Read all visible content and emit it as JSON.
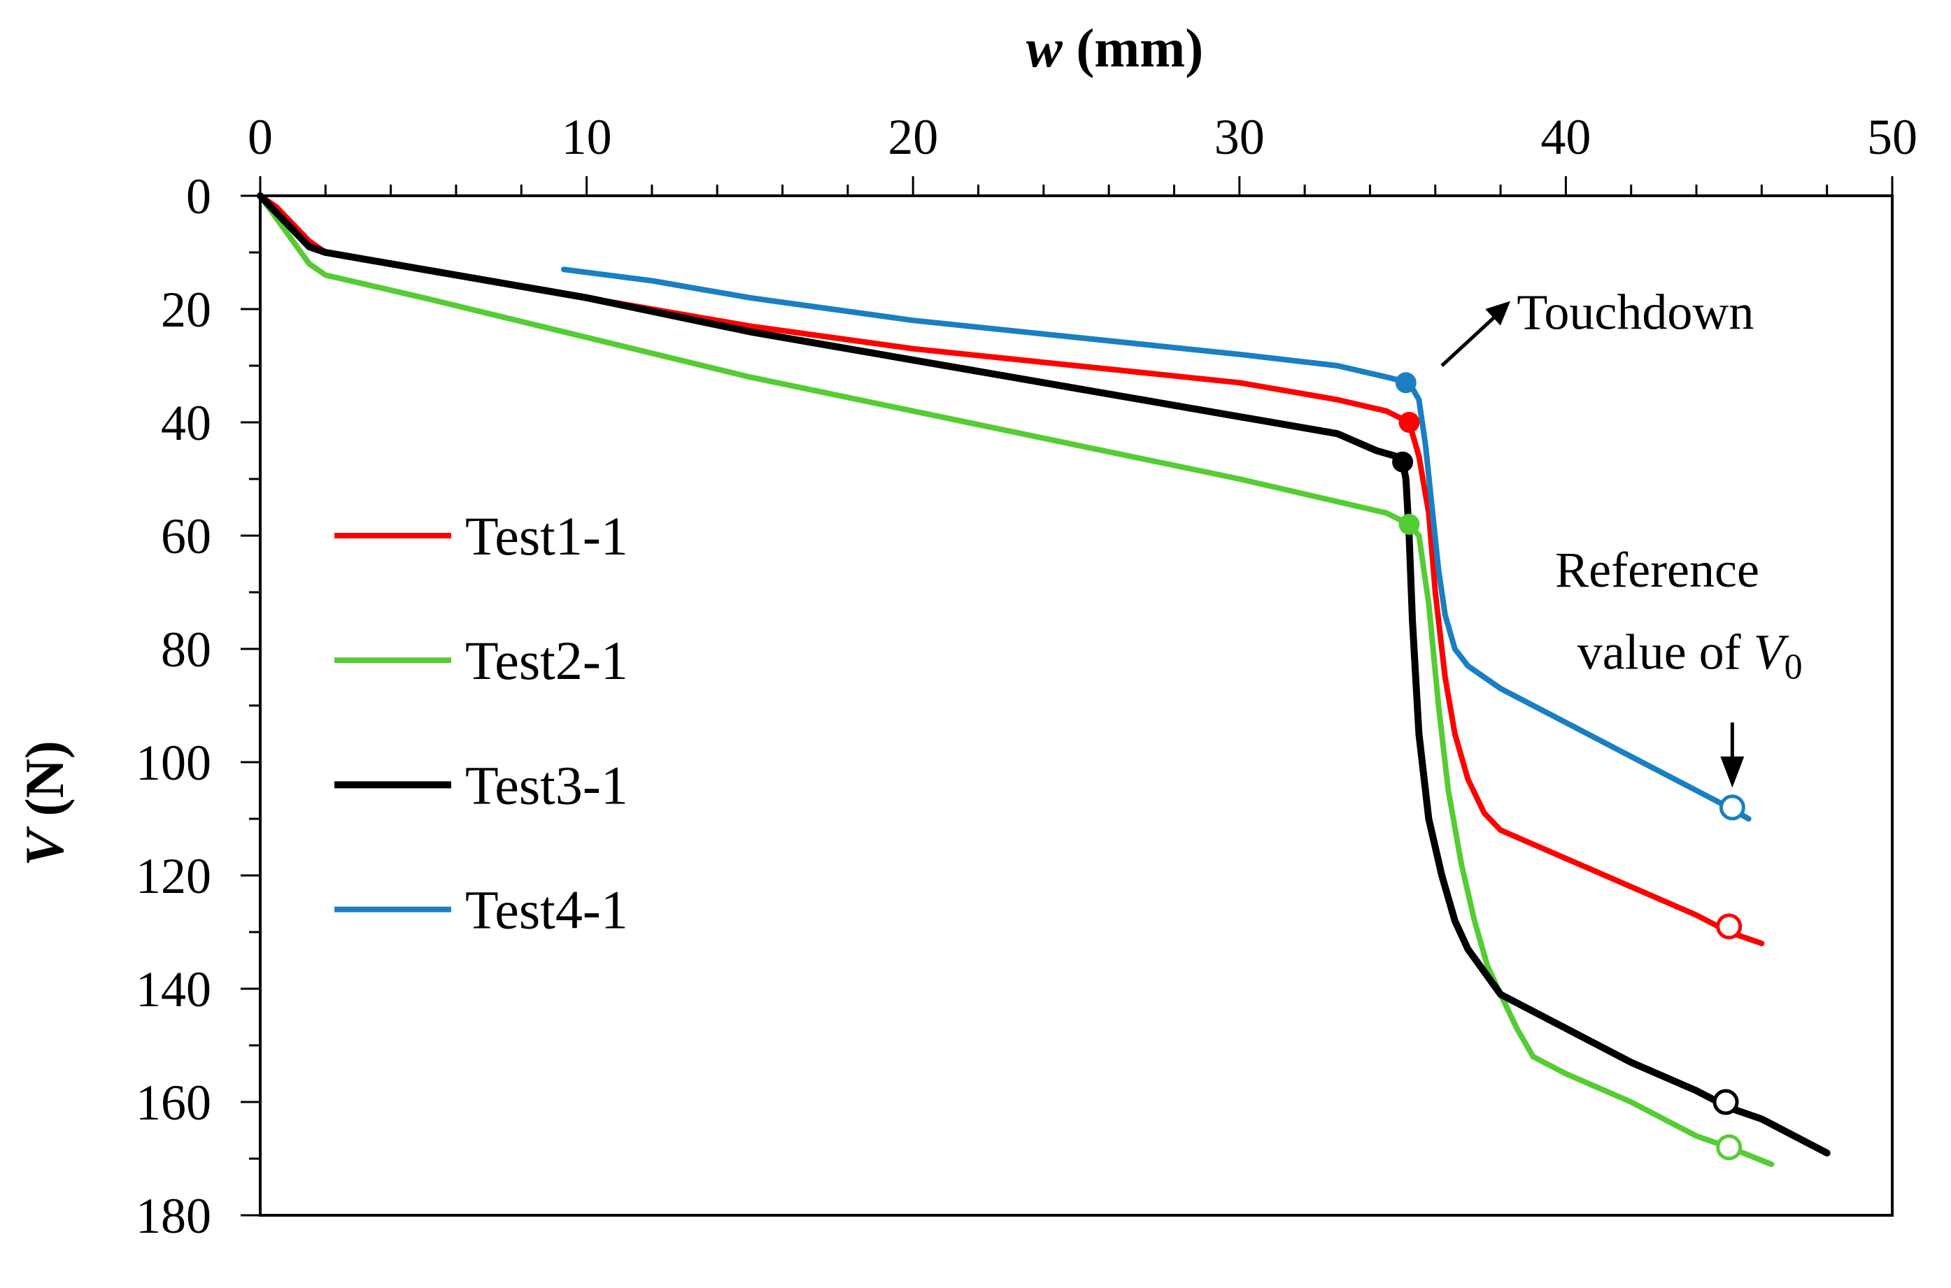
{
  "chart_data": {
    "type": "line",
    "xlabel_var": "w",
    "xlabel_unit": " (mm)",
    "ylabel_var": "V",
    "ylabel_unit": " (N)",
    "xlim": [
      0,
      50
    ],
    "ylim": [
      0,
      180
    ],
    "y_inverted": true,
    "x_ticks": [
      0,
      10,
      20,
      30,
      40,
      50
    ],
    "y_ticks": [
      0,
      20,
      40,
      60,
      80,
      100,
      120,
      140,
      160,
      180
    ],
    "x_minor_step": 2,
    "y_minor_step": 10,
    "legend_position": "left",
    "series": [
      {
        "name": "Test1-1",
        "color": "#ff0000",
        "x": [
          0,
          0.5,
          1,
          1.5,
          2,
          5,
          10,
          15,
          20,
          25,
          30,
          33,
          34.5,
          35.2,
          35.5,
          35.8,
          36,
          36.3,
          36.6,
          37,
          37.5,
          38,
          40,
          42,
          44,
          45,
          46
        ],
        "y": [
          0,
          2,
          5,
          8,
          10,
          13,
          18,
          23,
          27,
          30,
          33,
          36,
          38,
          40,
          46,
          56,
          70,
          85,
          95,
          103,
          109,
          112,
          117,
          122,
          127,
          130,
          132
        ],
        "touchdown": {
          "x": 35.2,
          "y": 40
        },
        "reference": {
          "x": 45,
          "y": 129
        }
      },
      {
        "name": "Test2-1",
        "color": "#55cc33",
        "x": [
          0,
          0.5,
          1,
          1.5,
          2,
          5,
          10,
          15,
          20,
          25,
          30,
          33,
          34.5,
          35.2,
          35.5,
          35.8,
          36.1,
          36.4,
          36.8,
          37.2,
          37.6,
          38,
          38.5,
          39,
          40,
          42,
          44,
          45,
          46.3
        ],
        "y": [
          0,
          4,
          8,
          12,
          14,
          18,
          25,
          32,
          38,
          44,
          50,
          54,
          56,
          58,
          60,
          72,
          90,
          105,
          118,
          128,
          136,
          141,
          147,
          152,
          155,
          160,
          166,
          168,
          171
        ],
        "touchdown": {
          "x": 35.2,
          "y": 58
        },
        "reference": {
          "x": 45,
          "y": 168
        }
      },
      {
        "name": "Test3-1",
        "color": "#000000",
        "x": [
          0,
          0.5,
          1,
          1.5,
          2,
          5,
          10,
          15,
          20,
          25,
          30,
          33,
          34.2,
          34.8,
          35,
          35.1,
          35.2,
          35.3,
          35.5,
          35.8,
          36.2,
          36.6,
          37,
          37.5,
          38,
          40,
          42,
          44,
          45,
          46,
          48
        ],
        "y": [
          0,
          3,
          6,
          9,
          10,
          13,
          18,
          24,
          29,
          34,
          39,
          42,
          45,
          46,
          47,
          50,
          60,
          75,
          95,
          110,
          120,
          128,
          133,
          137,
          141,
          147,
          153,
          158,
          161,
          163,
          169
        ],
        "touchdown": {
          "x": 35,
          "y": 47
        },
        "reference": {
          "x": 44.9,
          "y": 160
        }
      },
      {
        "name": "Test4-1",
        "color": "#1a7fc1",
        "x": [
          9.3,
          12,
          15,
          20,
          25,
          30,
          33,
          34.5,
          35.2,
          35.5,
          35.7,
          35.9,
          36.1,
          36.3,
          36.6,
          37,
          38,
          40,
          42,
          44,
          45,
          45.6
        ],
        "y": [
          13,
          15,
          18,
          22,
          25,
          28,
          30,
          32,
          33,
          36,
          44,
          55,
          66,
          74,
          80,
          83,
          87,
          93,
          99,
          105,
          108,
          110
        ],
        "touchdown": {
          "x": 35.1,
          "y": 33
        },
        "reference": {
          "x": 45.1,
          "y": 108
        }
      }
    ],
    "annotations": {
      "touchdown": "Touchdown",
      "reference_line1": "Reference",
      "reference_line2": "value  of ",
      "reference_var": "V",
      "reference_sub": "0"
    }
  }
}
